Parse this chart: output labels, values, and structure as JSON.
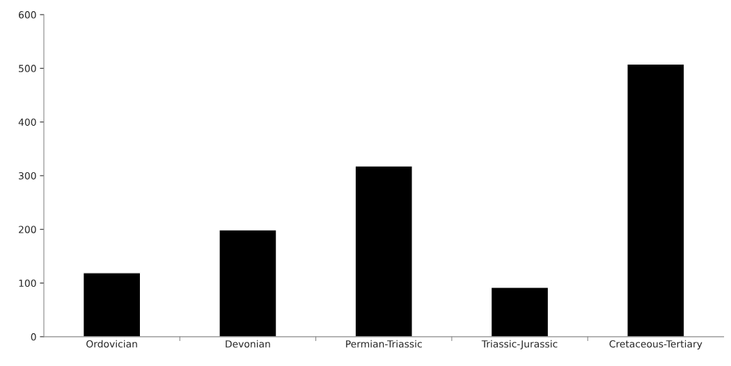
{
  "chart_data": {
    "type": "bar",
    "categories": [
      "Ordovician",
      "Devonian",
      "Permian-Triassic",
      "Triassic-Jurassic",
      "Cretaceous-Tertiary"
    ],
    "values": [
      119,
      199,
      318,
      92,
      508
    ],
    "color": "#000000",
    "ylim": [
      0,
      600
    ],
    "yticks": [
      0,
      100,
      200,
      300,
      400,
      500,
      600
    ],
    "grid": false
  }
}
